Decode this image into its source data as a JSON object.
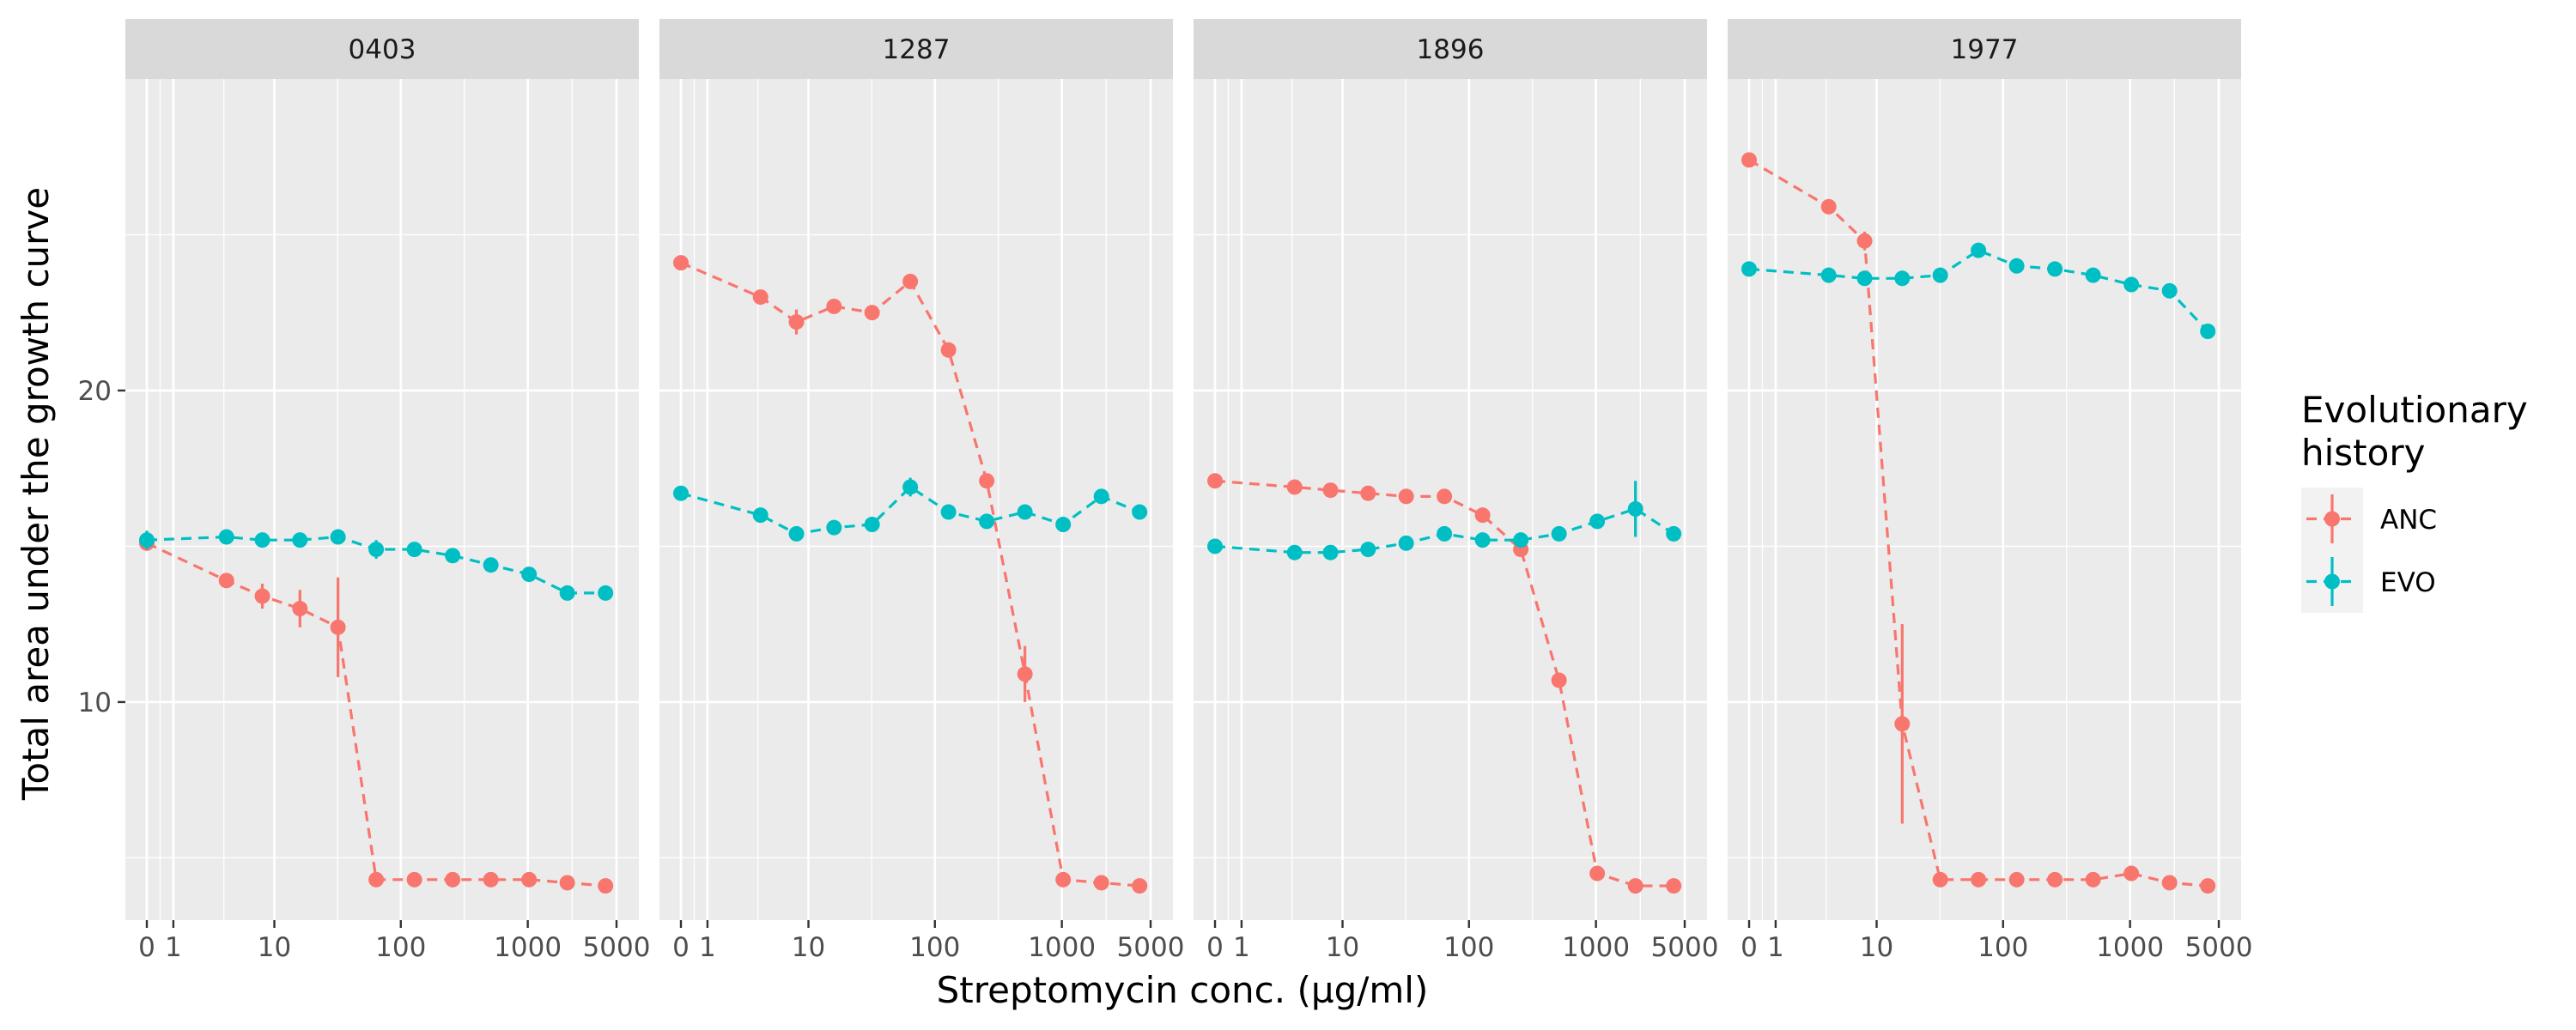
{
  "chart_data": {
    "type": "line",
    "facets": [
      "0403",
      "1287",
      "1896",
      "1977"
    ],
    "xlabel": "Streptomycin conc. (µg/ml)",
    "ylabel": "Total area under the growth curve",
    "x_scale": "pseudo-log",
    "x_ticks": [
      0,
      1,
      10,
      100,
      1000,
      5000
    ],
    "x_tick_labels": [
      "0",
      "1",
      "10",
      "100",
      "1000",
      "5000"
    ],
    "y_ticks": [
      10,
      20
    ],
    "y_tick_labels": [
      "10",
      "20"
    ],
    "ylim": [
      3,
      30
    ],
    "legend": {
      "title": "Evolutionary history",
      "title_lines": [
        "Evolutionary",
        "history"
      ],
      "position": "right",
      "items": [
        {
          "name": "ANC",
          "color": "#F8766D"
        },
        {
          "name": "EVO",
          "color": "#00BFC4"
        }
      ]
    },
    "colors": {
      "ANC": "#F8766D",
      "EVO": "#00BFC4"
    },
    "grid": true,
    "panels": [
      {
        "facet": "0403",
        "series": [
          {
            "name": "ANC",
            "points": [
              {
                "x": 0,
                "y": 15.1
              },
              {
                "x": 4,
                "y": 13.9,
                "err": 0.2
              },
              {
                "x": 8,
                "y": 13.4,
                "err": 0.4
              },
              {
                "x": 16,
                "y": 13.0,
                "err": 0.6
              },
              {
                "x": 32,
                "y": 12.4,
                "err": 1.6
              },
              {
                "x": 64,
                "y": 4.3
              },
              {
                "x": 128,
                "y": 4.3
              },
              {
                "x": 256,
                "y": 4.3
              },
              {
                "x": 512,
                "y": 4.3
              },
              {
                "x": 1024,
                "y": 4.3
              },
              {
                "x": 2048,
                "y": 4.2
              },
              {
                "x": 4096,
                "y": 4.1
              }
            ]
          },
          {
            "name": "EVO",
            "points": [
              {
                "x": 0,
                "y": 15.2,
                "err": 0.3
              },
              {
                "x": 4,
                "y": 15.3
              },
              {
                "x": 8,
                "y": 15.2
              },
              {
                "x": 16,
                "y": 15.2
              },
              {
                "x": 32,
                "y": 15.3
              },
              {
                "x": 64,
                "y": 14.9,
                "err": 0.3
              },
              {
                "x": 128,
                "y": 14.9
              },
              {
                "x": 256,
                "y": 14.7
              },
              {
                "x": 512,
                "y": 14.4
              },
              {
                "x": 1024,
                "y": 14.1
              },
              {
                "x": 2048,
                "y": 13.5
              },
              {
                "x": 4096,
                "y": 13.5
              }
            ]
          }
        ]
      },
      {
        "facet": "1287",
        "series": [
          {
            "name": "ANC",
            "points": [
              {
                "x": 0,
                "y": 24.1
              },
              {
                "x": 4,
                "y": 23.0
              },
              {
                "x": 8,
                "y": 22.2,
                "err": 0.4
              },
              {
                "x": 16,
                "y": 22.7
              },
              {
                "x": 32,
                "y": 22.5
              },
              {
                "x": 64,
                "y": 23.5
              },
              {
                "x": 128,
                "y": 21.3
              },
              {
                "x": 256,
                "y": 17.1
              },
              {
                "x": 512,
                "y": 10.9,
                "err": 0.9
              },
              {
                "x": 1024,
                "y": 4.3
              },
              {
                "x": 2048,
                "y": 4.2
              },
              {
                "x": 4096,
                "y": 4.1
              }
            ]
          },
          {
            "name": "EVO",
            "points": [
              {
                "x": 0,
                "y": 16.7
              },
              {
                "x": 4,
                "y": 16.0
              },
              {
                "x": 8,
                "y": 15.4
              },
              {
                "x": 16,
                "y": 15.6
              },
              {
                "x": 32,
                "y": 15.7
              },
              {
                "x": 64,
                "y": 16.9,
                "err": 0.3
              },
              {
                "x": 128,
                "y": 16.1
              },
              {
                "x": 256,
                "y": 15.8
              },
              {
                "x": 512,
                "y": 16.1
              },
              {
                "x": 1024,
                "y": 15.7
              },
              {
                "x": 2048,
                "y": 16.6
              },
              {
                "x": 4096,
                "y": 16.1
              }
            ]
          }
        ]
      },
      {
        "facet": "1896",
        "series": [
          {
            "name": "ANC",
            "points": [
              {
                "x": 0,
                "y": 17.1
              },
              {
                "x": 4,
                "y": 16.9
              },
              {
                "x": 8,
                "y": 16.8
              },
              {
                "x": 16,
                "y": 16.7
              },
              {
                "x": 32,
                "y": 16.6
              },
              {
                "x": 64,
                "y": 16.6
              },
              {
                "x": 128,
                "y": 16.0
              },
              {
                "x": 256,
                "y": 14.9
              },
              {
                "x": 512,
                "y": 10.7
              },
              {
                "x": 1024,
                "y": 4.5
              },
              {
                "x": 2048,
                "y": 4.1
              },
              {
                "x": 4096,
                "y": 4.1
              }
            ]
          },
          {
            "name": "EVO",
            "points": [
              {
                "x": 0,
                "y": 15.0
              },
              {
                "x": 4,
                "y": 14.8
              },
              {
                "x": 8,
                "y": 14.8
              },
              {
                "x": 16,
                "y": 14.9
              },
              {
                "x": 32,
                "y": 15.1
              },
              {
                "x": 64,
                "y": 15.4
              },
              {
                "x": 128,
                "y": 15.2
              },
              {
                "x": 256,
                "y": 15.2
              },
              {
                "x": 512,
                "y": 15.4
              },
              {
                "x": 1024,
                "y": 15.8
              },
              {
                "x": 2048,
                "y": 16.2,
                "err": 0.9
              },
              {
                "x": 4096,
                "y": 15.4
              }
            ]
          }
        ]
      },
      {
        "facet": "1977",
        "series": [
          {
            "name": "ANC",
            "points": [
              {
                "x": 0,
                "y": 27.4
              },
              {
                "x": 4,
                "y": 25.9
              },
              {
                "x": 8,
                "y": 24.8,
                "err": 0.3
              },
              {
                "x": 16,
                "y": 9.3,
                "err": 3.2
              },
              {
                "x": 32,
                "y": 4.3
              },
              {
                "x": 64,
                "y": 4.3
              },
              {
                "x": 128,
                "y": 4.3
              },
              {
                "x": 256,
                "y": 4.3
              },
              {
                "x": 512,
                "y": 4.3
              },
              {
                "x": 1024,
                "y": 4.5
              },
              {
                "x": 2048,
                "y": 4.2
              },
              {
                "x": 4096,
                "y": 4.1
              }
            ]
          },
          {
            "name": "EVO",
            "points": [
              {
                "x": 0,
                "y": 23.9
              },
              {
                "x": 4,
                "y": 23.7
              },
              {
                "x": 8,
                "y": 23.6
              },
              {
                "x": 16,
                "y": 23.6
              },
              {
                "x": 32,
                "y": 23.7
              },
              {
                "x": 64,
                "y": 24.5
              },
              {
                "x": 128,
                "y": 24.0
              },
              {
                "x": 256,
                "y": 23.9
              },
              {
                "x": 512,
                "y": 23.7
              },
              {
                "x": 1024,
                "y": 23.4
              },
              {
                "x": 2048,
                "y": 23.2
              },
              {
                "x": 4096,
                "y": 21.9
              }
            ]
          }
        ]
      }
    ]
  }
}
